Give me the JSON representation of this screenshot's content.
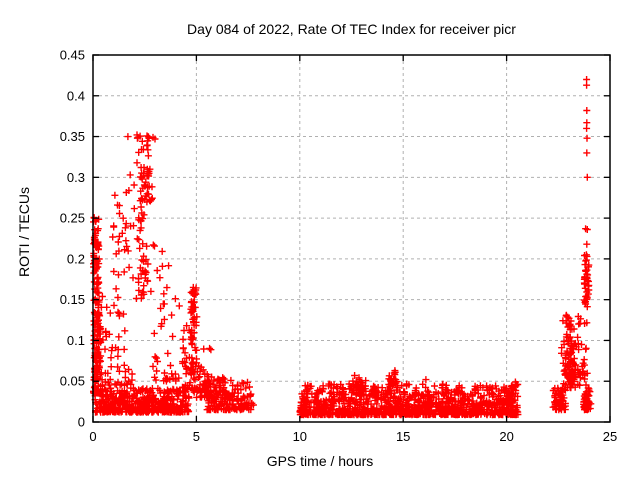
{
  "chart_data": {
    "type": "scatter",
    "title": "Day 084 of 2022, Rate Of TEC Index for receiver picr",
    "xlabel": "GPS time / hours",
    "ylabel": "ROTI / TECUs",
    "xlim": [
      0,
      25
    ],
    "ylim": [
      0,
      0.45
    ],
    "xticks": [
      {
        "v": 0,
        "label": "0"
      },
      {
        "v": 5,
        "label": "5"
      },
      {
        "v": 10,
        "label": "10"
      },
      {
        "v": 15,
        "label": "15"
      },
      {
        "v": 20,
        "label": "20"
      },
      {
        "v": 25,
        "label": "25"
      }
    ],
    "yticks": [
      {
        "v": 0.0,
        "label": "0"
      },
      {
        "v": 0.05,
        "label": "0.05"
      },
      {
        "v": 0.1,
        "label": "0.1"
      },
      {
        "v": 0.15,
        "label": "0.15"
      },
      {
        "v": 0.2,
        "label": "0.2"
      },
      {
        "v": 0.25,
        "label": "0.25"
      },
      {
        "v": 0.3,
        "label": "0.3"
      },
      {
        "v": 0.35,
        "label": "0.35"
      },
      {
        "v": 0.4,
        "label": "0.4"
      },
      {
        "v": 0.45,
        "label": "0.45"
      }
    ],
    "grid": {
      "on": true,
      "color": "#b0b0b0",
      "style": "dashed"
    },
    "marker": {
      "shape": "plus",
      "color": "#ff0000",
      "size": 7
    },
    "axis_color": "#000000",
    "background": "#ffffff",
    "legend": null,
    "clusters": [
      {
        "n": 120,
        "x": [
          0.02,
          0.38
        ],
        "y": [
          0.035,
          0.135
        ],
        "p": 1.3
      },
      {
        "n": 70,
        "x": [
          0.02,
          0.3
        ],
        "y": [
          0.14,
          0.252
        ],
        "p": 1
      },
      {
        "n": 450,
        "x": [
          0.1,
          4.65
        ],
        "y": [
          0.012,
          0.042
        ],
        "p": 2
      },
      {
        "n": 55,
        "x": [
          0.4,
          1.9
        ],
        "y": [
          0.045,
          0.155
        ],
        "p": 1.8
      },
      {
        "n": 28,
        "x": [
          0.95,
          2.05
        ],
        "y": [
          0.16,
          0.285
        ],
        "p": 1
      },
      {
        "n": 75,
        "x": [
          1.75,
          2.95
        ],
        "y": [
          0.15,
          0.352
        ],
        "xm": 2.4,
        "p": 1
      },
      {
        "n": 22,
        "x": [
          2.55,
          2.88
        ],
        "y": [
          0.27,
          0.345
        ],
        "p": 1
      },
      {
        "n": 42,
        "x": [
          2.9,
          4.2
        ],
        "y": [
          0.05,
          0.22
        ],
        "p": 2
      },
      {
        "n": 28,
        "x": [
          4.3,
          4.75
        ],
        "y": [
          0.04,
          0.12
        ],
        "p": 1.8
      },
      {
        "n": 70,
        "x": [
          4.6,
          5.05
        ],
        "y": [
          0.035,
          0.165
        ],
        "xm": 4.85,
        "p": 1.2
      },
      {
        "n": 55,
        "x": [
          5.0,
          5.75
        ],
        "y": [
          0.03,
          0.095
        ],
        "p": 1.8
      },
      {
        "n": 160,
        "x": [
          5.5,
          7.8
        ],
        "y": [
          0.015,
          0.052
        ],
        "p": 2
      },
      {
        "n": 20,
        "x": [
          6.0,
          6.45
        ],
        "y": [
          0.03,
          0.056
        ],
        "p": 1.2
      },
      {
        "n": 1150,
        "x": [
          10.0,
          20.55
        ],
        "y": [
          0.009,
          0.047
        ],
        "p": 2.2
      },
      {
        "n": 24,
        "x": [
          12.4,
          13.2
        ],
        "y": [
          0.038,
          0.058
        ],
        "p": 1.3
      },
      {
        "n": 24,
        "x": [
          14.3,
          14.75
        ],
        "y": [
          0.038,
          0.062
        ],
        "p": 1.3
      },
      {
        "n": 16,
        "x": [
          19.9,
          20.5
        ],
        "y": [
          0.028,
          0.05
        ],
        "p": 1.5
      },
      {
        "n": 55,
        "x": [
          22.25,
          22.85
        ],
        "y": [
          0.015,
          0.042
        ],
        "p": 1.5
      },
      {
        "n": 95,
        "x": [
          22.55,
          23.45
        ],
        "y": [
          0.042,
          0.132
        ],
        "xm": 23.0,
        "p": 1.6
      },
      {
        "n": 45,
        "x": [
          23.2,
          23.9
        ],
        "y": [
          0.045,
          0.135
        ],
        "p": 1.6
      },
      {
        "n": 38,
        "x": [
          23.75,
          23.98
        ],
        "y": [
          0.14,
          0.205
        ],
        "p": 1
      },
      {
        "n": 55,
        "x": [
          23.55,
          24.15
        ],
        "y": [
          0.015,
          0.042
        ],
        "xm": 23.9,
        "p": 1.5
      }
    ],
    "outlier_points": [
      [
        23.87,
        0.42
      ],
      [
        23.87,
        0.413
      ],
      [
        23.88,
        0.382
      ],
      [
        23.88,
        0.367
      ],
      [
        23.87,
        0.36
      ],
      [
        23.89,
        0.348
      ],
      [
        23.88,
        0.33
      ],
      [
        23.9,
        0.3
      ],
      [
        23.82,
        0.237
      ],
      [
        23.9,
        0.236
      ],
      [
        23.88,
        0.218
      ],
      [
        23.86,
        0.205
      ],
      [
        1.06,
        0.278
      ],
      [
        1.69,
        0.35
      ],
      [
        2.13,
        0.352
      ],
      [
        2.17,
        0.349
      ],
      [
        2.9,
        0.349
      ],
      [
        3.0,
        0.347
      ],
      [
        2.45,
        0.305
      ],
      [
        1.8,
        0.303
      ],
      [
        4.85,
        0.165
      ],
      [
        4.82,
        0.16
      ],
      [
        4.88,
        0.157
      ],
      [
        14.6,
        0.063
      ],
      [
        12.65,
        0.057
      ],
      [
        16.1,
        0.052
      ],
      [
        0.06,
        0.25
      ],
      [
        0.12,
        0.247
      ]
    ]
  }
}
